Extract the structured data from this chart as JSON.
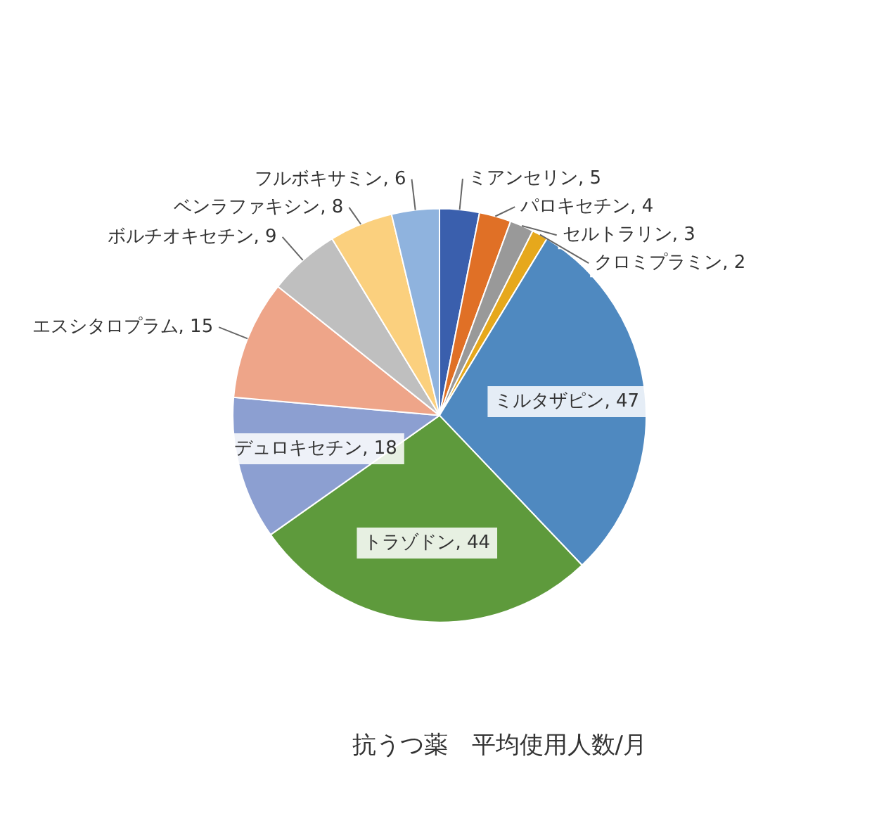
{
  "chart_data": {
    "type": "pie",
    "title": "抗うつ薬　平均使用人数/月",
    "categories": [
      "ミアンセリン",
      "パロキセチン",
      "セルトラリン",
      "クロミプラミン",
      "ミルタザピン",
      "トラゾドン",
      "デュロキセチン",
      "エスシタロプラム",
      "ボルチオキセチン",
      "ベンラファキシン",
      "フルボキサミン"
    ],
    "values": [
      5,
      4,
      3,
      2,
      47,
      44,
      18,
      15,
      9,
      8,
      6
    ],
    "colors": [
      "#3a5fad",
      "#e07026",
      "#999999",
      "#e6a81c",
      "#4f89c0",
      "#5e9a3c",
      "#8c9fd1",
      "#eea589",
      "#bfbfbf",
      "#fbd07e",
      "#8fb3de"
    ],
    "value_labels": [
      ", 5",
      ", 4",
      ", 3",
      ", 2",
      ", 47",
      ", 44",
      ", 18",
      ", 15",
      ", 9",
      ", 8",
      ", 6"
    ],
    "legend": false
  }
}
